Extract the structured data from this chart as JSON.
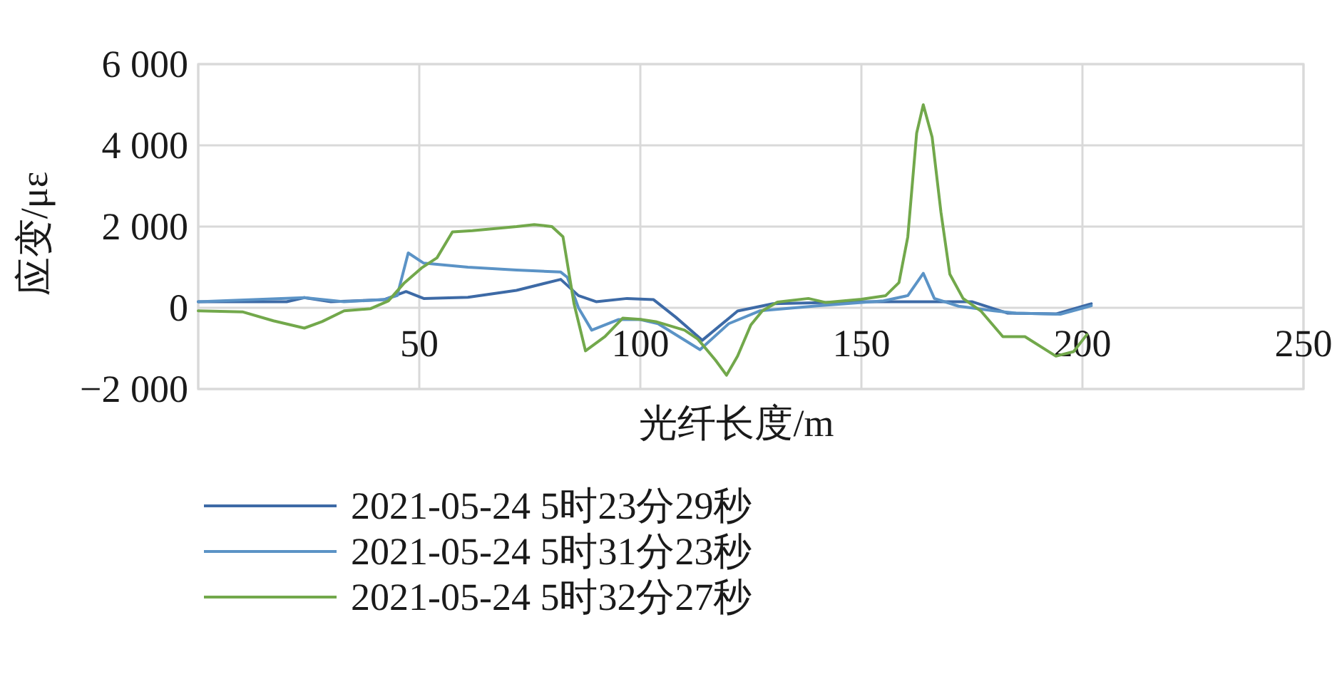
{
  "chart_data": {
    "type": "line",
    "xlabel": "光纤长度/m",
    "ylabel": "应变/με",
    "xlim": [
      0,
      250
    ],
    "ylim": [
      -2000,
      6000
    ],
    "xticks": [
      {
        "value": 0,
        "label": null
      },
      50,
      100,
      150,
      200,
      250
    ],
    "yticks": [
      {
        "value": -2000,
        "label": "−2 000"
      },
      0,
      {
        "value": 2000,
        "label": "2 000"
      },
      {
        "value": 4000,
        "label": "4 000"
      },
      {
        "value": 6000,
        "label": "6 000"
      }
    ],
    "grid": true,
    "legend": "bottom",
    "marker": "none",
    "line_style": "solid",
    "series": [
      {
        "name": "2021-05-24 5时23分29秒",
        "color": "#3d6aa6",
        "x": [
          0,
          20,
          24,
          30,
          42,
          47,
          51,
          61,
          72,
          82,
          86,
          90,
          97,
          103,
          108,
          114,
          122,
          130,
          150,
          175,
          183,
          194,
          202
        ],
        "values": [
          150,
          150,
          250,
          150,
          200,
          400,
          230,
          260,
          430,
          700,
          300,
          150,
          230,
          200,
          -230,
          -800,
          -80,
          100,
          150,
          150,
          -130,
          -150,
          100
        ]
      },
      {
        "name": "2021-05-24 5时31分23秒",
        "color": "#5b93c6",
        "x": [
          0,
          24,
          33,
          42,
          45,
          47.5,
          51,
          61,
          72,
          82,
          83.5,
          86,
          89,
          95,
          100,
          104,
          113.5,
          120,
          127,
          140,
          155,
          160.5,
          164,
          166.5,
          172,
          180,
          185,
          195,
          202
        ],
        "values": [
          150,
          250,
          150,
          200,
          300,
          1350,
          1100,
          1000,
          930,
          880,
          750,
          0,
          -550,
          -290,
          -290,
          -390,
          -1030,
          -390,
          -75,
          50,
          170,
          300,
          850,
          230,
          40,
          -75,
          -130,
          -160,
          50
        ]
      },
      {
        "name": "2021-05-24 5时32分27秒",
        "color": "#72a84b",
        "x": [
          0,
          10,
          17,
          24,
          28,
          33,
          39,
          43,
          46.5,
          50.5,
          54,
          57.5,
          62,
          72,
          76,
          80,
          82.5,
          85,
          87.6,
          92,
          96,
          100,
          103.5,
          110,
          113,
          117,
          119.5,
          122,
          125,
          127.6,
          131,
          138,
          142,
          150,
          155.5,
          158.5,
          160.5,
          162.5,
          164,
          166,
          168,
          170,
          173,
          177,
          182,
          187,
          194,
          198,
          201
        ],
        "values": [
          -75,
          -100,
          -320,
          -500,
          -340,
          -75,
          -20,
          170,
          600,
          980,
          1230,
          1870,
          1900,
          2000,
          2050,
          2000,
          1750,
          100,
          -1060,
          -710,
          -255,
          -285,
          -340,
          -550,
          -770,
          -1290,
          -1660,
          -1190,
          -420,
          -75,
          140,
          230,
          130,
          210,
          300,
          620,
          1750,
          4300,
          5000,
          4200,
          2350,
          830,
          230,
          -75,
          -710,
          -710,
          -1190,
          -1080,
          -660
        ]
      }
    ]
  }
}
